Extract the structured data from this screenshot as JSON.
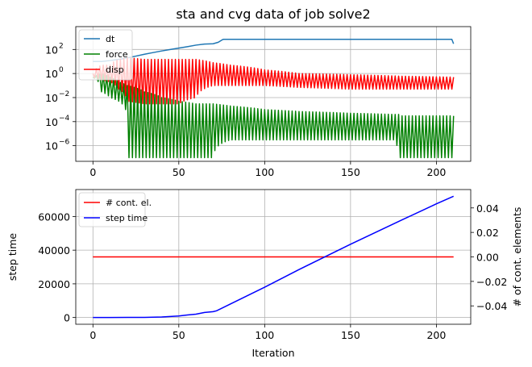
{
  "chart_data": [
    {
      "type": "line",
      "title": "sta and cvg data of job solve2",
      "xlabel": "",
      "ylabel": "",
      "yscale": "log",
      "xlim": [
        -10,
        220
      ],
      "ylim_exponent": [
        -7.3,
        3.9
      ],
      "xticks": [
        0,
        50,
        100,
        150,
        200
      ],
      "xtick_labels": [
        "0",
        "50",
        "100",
        "150",
        "200"
      ],
      "yticks_exponent": [
        -6,
        -4,
        -2,
        0,
        2
      ],
      "ytick_labels": [
        "10",
        "10",
        "10",
        "10",
        "10"
      ],
      "ytick_exponent_labels": [
        "−6",
        "−4",
        "−2",
        "0",
        "2"
      ],
      "grid": true,
      "legend_position": "upper-left",
      "legend": [
        "dt",
        "force",
        "disp"
      ],
      "series": [
        {
          "name": "dt",
          "color": "#1f77b4",
          "x": [
            0,
            5,
            10,
            15,
            20,
            25,
            30,
            35,
            40,
            45,
            50,
            55,
            60,
            65,
            70,
            73,
            75,
            76,
            100,
            150,
            200,
            209,
            210
          ],
          "y": [
            10,
            10,
            12,
            15,
            20,
            28,
            40,
            55,
            75,
            100,
            130,
            170,
            230,
            280,
            300,
            400,
            600,
            700,
            700,
            700,
            700,
            700,
            300
          ]
        },
        {
          "name": "force",
          "color": "#008000",
          "pattern": "oscillating",
          "x": [
            0,
            5,
            10,
            15,
            20,
            30,
            40,
            50,
            60,
            70,
            80,
            100,
            120,
            150,
            175,
            178,
            180,
            200,
            210
          ],
          "upper": [
            0.5,
            1,
            0.5,
            0.2,
            0.1,
            0.03,
            0.01,
            0.005,
            0.003,
            0.003,
            0.002,
            0.001,
            0.0007,
            0.0005,
            0.0004,
            0.0004,
            0.0003,
            0.0003,
            0.0003
          ],
          "lower": [
            0.5,
            0.03,
            0.01,
            0.005,
            1e-07,
            1e-07,
            1e-07,
            1e-07,
            1e-07,
            1e-07,
            3e-06,
            3e-06,
            3e-06,
            3e-06,
            3e-06,
            1e-07,
            1e-07,
            1e-07,
            1e-07
          ]
        },
        {
          "name": "disp",
          "color": "#ff0000",
          "pattern": "oscillating",
          "x": [
            0,
            5,
            10,
            15,
            20,
            30,
            40,
            50,
            60,
            70,
            80,
            100,
            120,
            150,
            180,
            210
          ],
          "upper": [
            1,
            5,
            5,
            15,
            20,
            15,
            15,
            15,
            15,
            8,
            5,
            2,
            1,
            0.8,
            0.6,
            0.5
          ],
          "lower": [
            0.5,
            0.3,
            0.2,
            0.05,
            0.005,
            0.003,
            0.003,
            0.003,
            0.01,
            0.1,
            0.1,
            0.1,
            0.07,
            0.05,
            0.05,
            0.05
          ]
        }
      ]
    },
    {
      "type": "line",
      "title": "",
      "xlabel": "Iteration",
      "ylabel": "step time",
      "ylabel_right": "# of cont. elements",
      "xlim": [
        -10,
        220
      ],
      "ylim": [
        -4000,
        76000
      ],
      "ylim_right": [
        -0.055,
        0.055
      ],
      "xticks": [
        0,
        50,
        100,
        150,
        200
      ],
      "xtick_labels": [
        "0",
        "50",
        "100",
        "150",
        "200"
      ],
      "yticks": [
        0,
        20000,
        40000,
        60000
      ],
      "ytick_labels": [
        "0",
        "20000",
        "40000",
        "60000"
      ],
      "yticks_right": [
        -0.04,
        -0.02,
        0.0,
        0.02,
        0.04
      ],
      "ytick_labels_right": [
        "−0.04",
        "−0.02",
        "0.00",
        "0.02",
        "0.04"
      ],
      "grid": true,
      "legend_position": "upper-left",
      "legend": [
        "# cont. el.",
        "step time"
      ],
      "series": [
        {
          "name": "# cont. el.",
          "color": "#ff0000",
          "axis": "right",
          "x": [
            0,
            210
          ],
          "y": [
            0,
            0
          ]
        },
        {
          "name": "step time",
          "color": "#0000ff",
          "axis": "left",
          "x": [
            0,
            10,
            20,
            30,
            40,
            45,
            50,
            55,
            60,
            65,
            70,
            72,
            80,
            100,
            120,
            150,
            180,
            200,
            210
          ],
          "y": [
            0,
            0,
            50,
            100,
            300,
            600,
            900,
            1500,
            2000,
            3000,
            3500,
            4000,
            8000,
            18000,
            28500,
            43500,
            58000,
            67500,
            72000
          ]
        }
      ]
    }
  ]
}
